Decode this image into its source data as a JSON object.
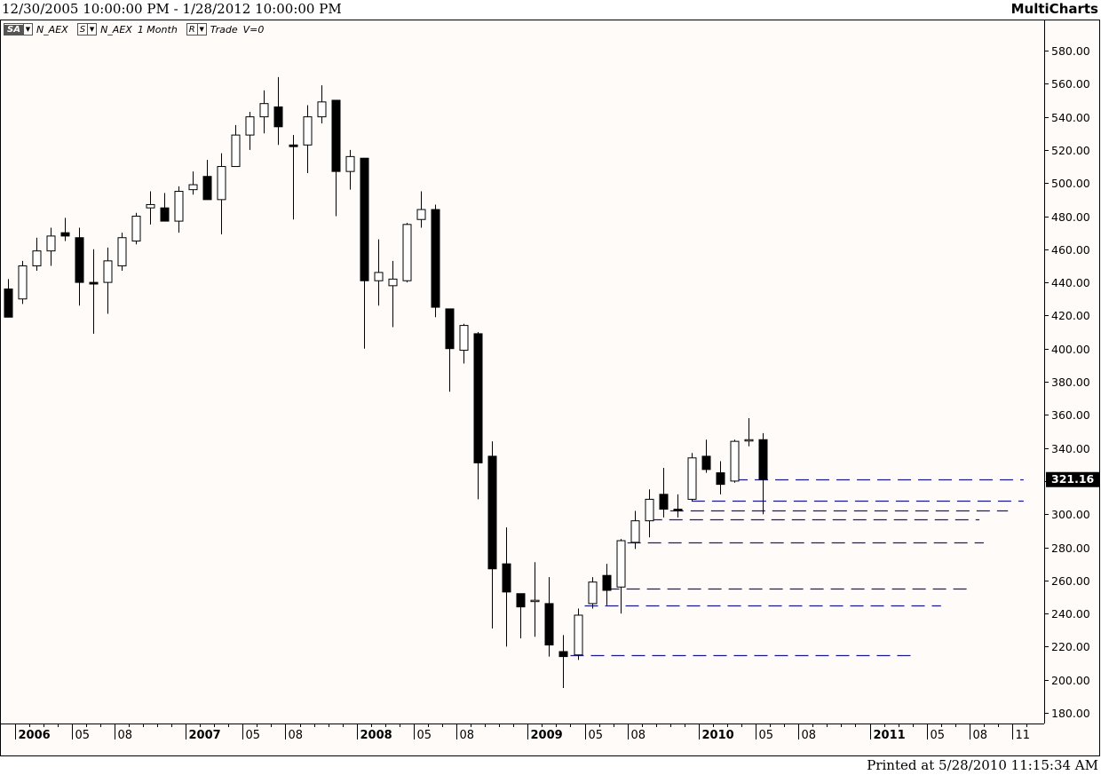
{
  "header": {
    "date_range": "12/30/2005 10:00:00 PM - 1/28/2012 10:00:00 PM",
    "app_name": "MultiCharts"
  },
  "legend": {
    "sa_label": "SA",
    "symbol": "N_AEX",
    "s_label": "S",
    "symbol_repeat": "N_AEX",
    "interval": "1 Month",
    "r_label": "R",
    "data_type": "Trade",
    "volume": "V=0"
  },
  "footer": {
    "printed": "Printed at 5/28/2010 11:15:34 AM"
  },
  "chart_data": {
    "type": "candlestick",
    "y_ticks": [
      "580.00",
      "560.00",
      "540.00",
      "520.00",
      "500.00",
      "480.00",
      "460.00",
      "440.00",
      "420.00",
      "400.00",
      "380.00",
      "360.00",
      "340.00",
      "320.00",
      "300.00",
      "280.00",
      "260.00",
      "240.00",
      "220.00",
      "200.00",
      "180.00"
    ],
    "ylim": [
      172,
      592
    ],
    "last_price_label": "321.16",
    "x_labels": [
      {
        "label": "2006",
        "i": 1,
        "bold": true
      },
      {
        "label": "05",
        "i": 5,
        "bold": false
      },
      {
        "label": "08",
        "i": 8,
        "bold": false
      },
      {
        "label": "2007",
        "i": 13,
        "bold": true
      },
      {
        "label": "05",
        "i": 17,
        "bold": false
      },
      {
        "label": "08",
        "i": 20,
        "bold": false
      },
      {
        "label": "2008",
        "i": 25,
        "bold": true
      },
      {
        "label": "05",
        "i": 29,
        "bold": false
      },
      {
        "label": "08",
        "i": 32,
        "bold": false
      },
      {
        "label": "2009",
        "i": 37,
        "bold": true
      },
      {
        "label": "05",
        "i": 41,
        "bold": false
      },
      {
        "label": "08",
        "i": 44,
        "bold": false
      },
      {
        "label": "2010",
        "i": 49,
        "bold": true
      },
      {
        "label": "05",
        "i": 53,
        "bold": false
      },
      {
        "label": "08",
        "i": 56,
        "bold": false
      },
      {
        "label": "2011",
        "i": 61,
        "bold": true
      },
      {
        "label": "05",
        "i": 65,
        "bold": false
      },
      {
        "label": "08",
        "i": 68,
        "bold": false
      },
      {
        "label": "11",
        "i": 71,
        "bold": false
      }
    ],
    "candles": [
      {
        "o": 436,
        "h": 442,
        "l": 419,
        "c": 419
      },
      {
        "o": 430,
        "h": 453,
        "l": 427,
        "c": 450
      },
      {
        "o": 450,
        "h": 467,
        "l": 447,
        "c": 459
      },
      {
        "o": 459,
        "h": 473,
        "l": 450,
        "c": 468
      },
      {
        "o": 470,
        "h": 479,
        "l": 465,
        "c": 468
      },
      {
        "o": 467,
        "h": 473,
        "l": 426,
        "c": 440
      },
      {
        "o": 440,
        "h": 460,
        "l": 409,
        "c": 439
      },
      {
        "o": 440,
        "h": 461,
        "l": 421,
        "c": 453
      },
      {
        "o": 450,
        "h": 470,
        "l": 447,
        "c": 467
      },
      {
        "o": 465,
        "h": 482,
        "l": 463,
        "c": 480
      },
      {
        "o": 485,
        "h": 495,
        "l": 475,
        "c": 487
      },
      {
        "o": 485,
        "h": 494,
        "l": 477,
        "c": 477
      },
      {
        "o": 477,
        "h": 498,
        "l": 470,
        "c": 495
      },
      {
        "o": 496,
        "h": 507,
        "l": 493,
        "c": 499
      },
      {
        "o": 504,
        "h": 514,
        "l": 490,
        "c": 490
      },
      {
        "o": 490,
        "h": 518,
        "l": 469,
        "c": 510
      },
      {
        "o": 510,
        "h": 535,
        "l": 510,
        "c": 529
      },
      {
        "o": 529,
        "h": 543,
        "l": 520,
        "c": 540
      },
      {
        "o": 540,
        "h": 556,
        "l": 530,
        "c": 548
      },
      {
        "o": 546,
        "h": 564,
        "l": 523,
        "c": 534
      },
      {
        "o": 523,
        "h": 529,
        "l": 478,
        "c": 522
      },
      {
        "o": 523,
        "h": 547,
        "l": 506,
        "c": 540
      },
      {
        "o": 540,
        "h": 559,
        "l": 536,
        "c": 549
      },
      {
        "o": 550,
        "h": 550,
        "l": 480,
        "c": 507
      },
      {
        "o": 507,
        "h": 520,
        "l": 496,
        "c": 516
      },
      {
        "o": 515,
        "h": 515,
        "l": 400,
        "c": 441
      },
      {
        "o": 441,
        "h": 466,
        "l": 426,
        "c": 446
      },
      {
        "o": 438,
        "h": 453,
        "l": 413,
        "c": 442
      },
      {
        "o": 441,
        "h": 476,
        "l": 440,
        "c": 475
      },
      {
        "o": 478,
        "h": 495,
        "l": 473,
        "c": 484
      },
      {
        "o": 484,
        "h": 487,
        "l": 419,
        "c": 425
      },
      {
        "o": 424,
        "h": 424,
        "l": 374,
        "c": 400
      },
      {
        "o": 399,
        "h": 415,
        "l": 391,
        "c": 414
      },
      {
        "o": 409,
        "h": 410,
        "l": 309,
        "c": 331
      },
      {
        "o": 335,
        "h": 344,
        "l": 231,
        "c": 267
      },
      {
        "o": 270,
        "h": 292,
        "l": 220,
        "c": 253
      },
      {
        "o": 252,
        "h": 252,
        "l": 225,
        "c": 244
      },
      {
        "o": 248,
        "h": 271,
        "l": 226,
        "c": 248
      },
      {
        "o": 246,
        "h": 262,
        "l": 214,
        "c": 221
      },
      {
        "o": 217,
        "h": 227,
        "l": 195,
        "c": 214
      },
      {
        "o": 215,
        "h": 243,
        "l": 212,
        "c": 239
      },
      {
        "o": 246,
        "h": 262,
        "l": 243,
        "c": 259
      },
      {
        "o": 263,
        "h": 270,
        "l": 245,
        "c": 254
      },
      {
        "o": 256,
        "h": 285,
        "l": 240,
        "c": 284
      },
      {
        "o": 283,
        "h": 302,
        "l": 279,
        "c": 296
      },
      {
        "o": 296,
        "h": 315,
        "l": 286,
        "c": 309
      },
      {
        "o": 312,
        "h": 328,
        "l": 298,
        "c": 303
      },
      {
        "o": 303,
        "h": 312,
        "l": 298,
        "c": 302
      },
      {
        "o": 309,
        "h": 337,
        "l": 308,
        "c": 334
      },
      {
        "o": 335,
        "h": 345,
        "l": 325,
        "c": 327
      },
      {
        "o": 325,
        "h": 332,
        "l": 312,
        "c": 318
      },
      {
        "o": 320,
        "h": 345,
        "l": 319,
        "c": 344
      },
      {
        "o": 345,
        "h": 358,
        "l": 341,
        "c": 345
      },
      {
        "o": 345,
        "h": 349,
        "l": 300,
        "c": 321
      }
    ],
    "levels": [
      {
        "y": 321.16,
        "from": 51,
        "to": 71.3
      },
      {
        "y": 308,
        "from": 48,
        "to": 71.3
      },
      {
        "y": 302,
        "from": 46.5,
        "to": 70.2
      },
      {
        "y": 297,
        "from": 45,
        "to": 68.2
      },
      {
        "y": 283,
        "from": 43.5,
        "to": 68.5
      },
      {
        "y": 255,
        "from": 42,
        "to": 67.5
      },
      {
        "y": 245,
        "from": 40.5,
        "to": 65.5
      },
      {
        "y": 215,
        "from": 39.5,
        "to": 63.5
      }
    ],
    "colors": {
      "up_fill": "#ffffff",
      "down_fill": "#000000",
      "line": "#000000",
      "level": "#1a1a8c",
      "background": "#fffbf9"
    }
  }
}
